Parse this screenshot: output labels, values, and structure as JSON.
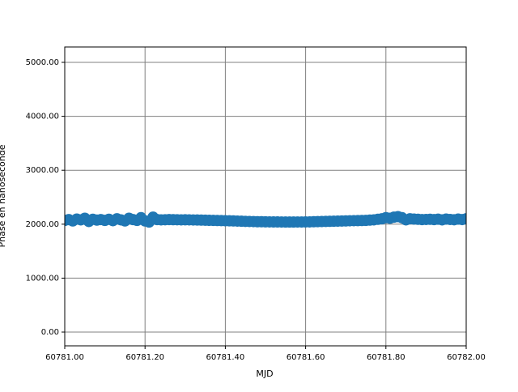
{
  "chart_data": {
    "type": "scatter",
    "xlabel": "MJD",
    "ylabel": "Phase en nanoseconde",
    "xlim": [
      60781.0,
      60782.0
    ],
    "ylim": [
      -255,
      5285
    ],
    "xticks": [
      {
        "value": 60781.0,
        "label": "60781.00"
      },
      {
        "value": 60781.2,
        "label": "60781.20"
      },
      {
        "value": 60781.4,
        "label": "60781.40"
      },
      {
        "value": 60781.6,
        "label": "60781.60"
      },
      {
        "value": 60781.8,
        "label": "60781.80"
      },
      {
        "value": 60782.0,
        "label": "60782.00"
      }
    ],
    "yticks": [
      {
        "value": 0,
        "label": "0.00"
      },
      {
        "value": 1000,
        "label": "1000.00"
      },
      {
        "value": 2000,
        "label": "2000.00"
      },
      {
        "value": 3000,
        "label": "3000.00"
      },
      {
        "value": 4000,
        "label": "4000.00"
      },
      {
        "value": 5000,
        "label": "5000.00"
      }
    ],
    "grid": true,
    "series": [
      {
        "color": "#1f77b4",
        "x": [
          60781.0,
          60781.01,
          60781.02,
          60781.03,
          60781.04,
          60781.05,
          60781.06,
          60781.07,
          60781.08,
          60781.09,
          60781.1,
          60781.11,
          60781.12,
          60781.13,
          60781.14,
          60781.15,
          60781.16,
          60781.17,
          60781.18,
          60781.19,
          60781.2,
          60781.21,
          60781.22,
          60781.23,
          60781.24,
          60781.25,
          60781.26,
          60781.27,
          60781.28,
          60781.29,
          60781.3,
          60781.31,
          60781.32,
          60781.33,
          60781.34,
          60781.35,
          60781.36,
          60781.37,
          60781.38,
          60781.39,
          60781.4,
          60781.41,
          60781.42,
          60781.43,
          60781.44,
          60781.45,
          60781.46,
          60781.47,
          60781.48,
          60781.49,
          60781.5,
          60781.51,
          60781.52,
          60781.53,
          60781.54,
          60781.55,
          60781.56,
          60781.57,
          60781.58,
          60781.59,
          60781.6,
          60781.61,
          60781.62,
          60781.63,
          60781.64,
          60781.65,
          60781.66,
          60781.67,
          60781.68,
          60781.69,
          60781.7,
          60781.71,
          60781.72,
          60781.73,
          60781.74,
          60781.75,
          60781.76,
          60781.77,
          60781.78,
          60781.79,
          60781.8,
          60781.81,
          60781.82,
          60781.83,
          60781.84,
          60781.85,
          60781.86,
          60781.87,
          60781.88,
          60781.89,
          60781.9,
          60781.91,
          60781.92,
          60781.93,
          60781.94,
          60781.95,
          60781.96,
          60781.97,
          60781.98,
          60781.99,
          60782.0
        ],
        "values": [
          2070,
          2085,
          2060,
          2095,
          2080,
          2110,
          2050,
          2090,
          2075,
          2085,
          2070,
          2090,
          2065,
          2100,
          2080,
          2060,
          2110,
          2085,
          2070,
          2120,
          2060,
          2040,
          2130,
          2085,
          2080,
          2082,
          2085,
          2083,
          2082,
          2080,
          2081,
          2080,
          2078,
          2077,
          2076,
          2074,
          2072,
          2070,
          2068,
          2066,
          2064,
          2062,
          2060,
          2058,
          2055,
          2052,
          2050,
          2048,
          2046,
          2045,
          2044,
          2043,
          2042,
          2042,
          2041,
          2040,
          2040,
          2040,
          2041,
          2041,
          2042,
          2043,
          2045,
          2047,
          2049,
          2051,
          2053,
          2055,
          2057,
          2059,
          2061,
          2063,
          2065,
          2066,
          2068,
          2070,
          2075,
          2080,
          2090,
          2100,
          2120,
          2110,
          2130,
          2140,
          2120,
          2080,
          2100,
          2095,
          2090,
          2085,
          2088,
          2090,
          2085,
          2092,
          2080,
          2095,
          2088,
          2082,
          2094,
          2086,
          2100
        ]
      }
    ]
  }
}
